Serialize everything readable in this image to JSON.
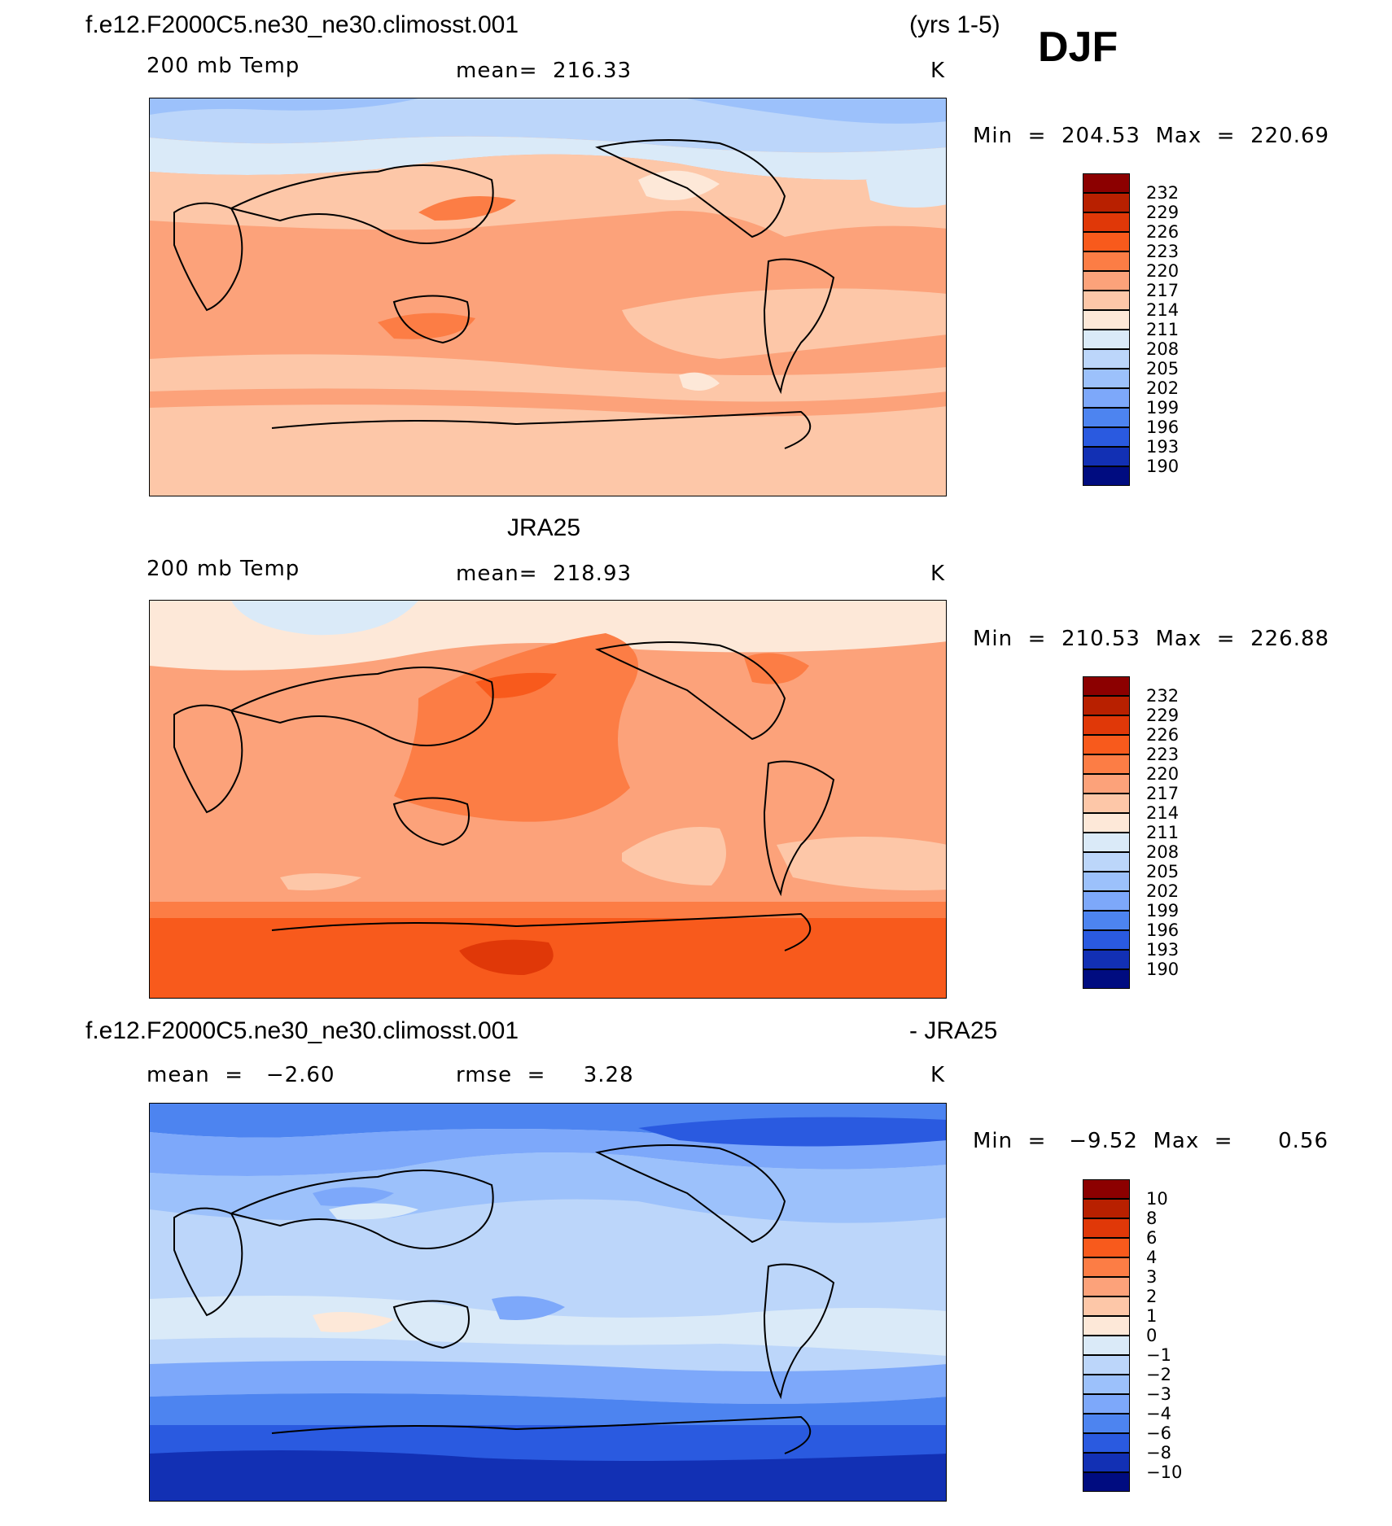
{
  "season": "DJF",
  "panels": [
    {
      "title_left": "f.e12.F2000C5.ne30_ne30.climosst.001",
      "title_right": "(yrs 1-5)",
      "var_label": "200 mb Temp",
      "stat_text": "mean=  216.33",
      "units": "K",
      "minmax": "Min  =  204.53  Max  =  220.69",
      "colorbar_levels": [
        "232",
        "229",
        "226",
        "223",
        "220",
        "217",
        "214",
        "211",
        "208",
        "205",
        "202",
        "199",
        "196",
        "193",
        "190"
      ]
    },
    {
      "title_center": "JRA25",
      "var_label": "200 mb Temp",
      "stat_text": "mean=  218.93",
      "units": "K",
      "minmax": "Min  =  210.53  Max  =  226.88",
      "colorbar_levels": [
        "232",
        "229",
        "226",
        "223",
        "220",
        "217",
        "214",
        "211",
        "208",
        "205",
        "202",
        "199",
        "196",
        "193",
        "190"
      ]
    },
    {
      "title_left": "f.e12.F2000C5.ne30_ne30.climosst.001",
      "title_right": "- JRA25",
      "mean_text": "mean  =   −2.60",
      "rmse_text": "rmse  =     3.28",
      "units": "K",
      "minmax": "Min  =   −9.52  Max  =      0.56",
      "colorbar_levels": [
        "10",
        "8",
        "6",
        "4",
        "3",
        "2",
        "1",
        "0",
        "−1",
        "−2",
        "−3",
        "−4",
        "−6",
        "−8",
        "−10"
      ]
    }
  ],
  "colors": {
    "palette": [
      "#8c0000",
      "#b82000",
      "#e03808",
      "#f85a1c",
      "#fc7d45",
      "#fca27a",
      "#fdc7a8",
      "#fde8d8",
      "#daeaf8",
      "#bcd6fa",
      "#9cc1fb",
      "#7da8fa",
      "#4d84f0",
      "#2a5ae0",
      "#1230b4",
      "#000c80"
    ]
  },
  "icons": [
    "coastline-map"
  ]
}
